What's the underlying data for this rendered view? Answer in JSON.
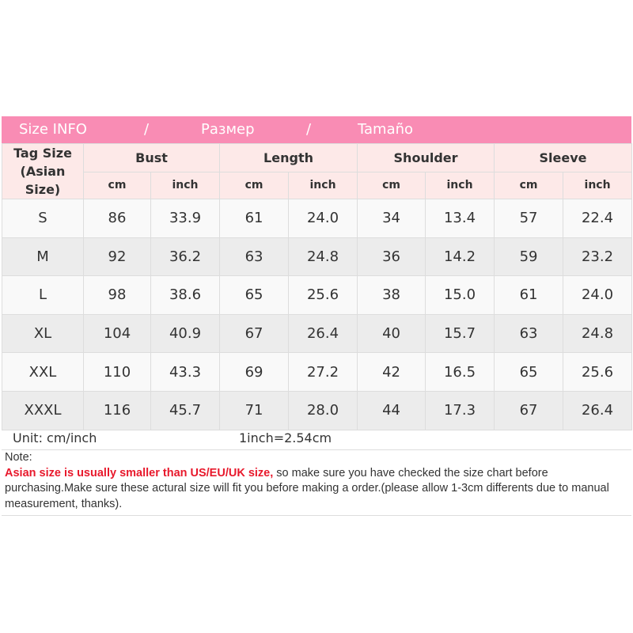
{
  "banner": {
    "title": "Size INFO",
    "sep1": "/",
    "ru": "Размер",
    "sep2": "/",
    "es": "Tamaño"
  },
  "header": {
    "tag": "Tag Size",
    "tag2": "(Asian Size)",
    "groups": [
      "Bust",
      "Length",
      "Shoulder",
      "Sleeve"
    ],
    "cm": "cm",
    "inch": "inch"
  },
  "rows": [
    [
      "S",
      "86",
      "33.9",
      "61",
      "24.0",
      "34",
      "13.4",
      "57",
      "22.4"
    ],
    [
      "M",
      "92",
      "36.2",
      "63",
      "24.8",
      "36",
      "14.2",
      "59",
      "23.2"
    ],
    [
      "L",
      "98",
      "38.6",
      "65",
      "25.6",
      "38",
      "15.0",
      "61",
      "24.0"
    ],
    [
      "XL",
      "104",
      "40.9",
      "67",
      "26.4",
      "40",
      "15.7",
      "63",
      "24.8"
    ],
    [
      "XXL",
      "110",
      "43.3",
      "69",
      "27.2",
      "42",
      "16.5",
      "65",
      "25.6"
    ],
    [
      "XXXL",
      "116",
      "45.7",
      "71",
      "28.0",
      "44",
      "17.3",
      "67",
      "26.4"
    ]
  ],
  "unit": {
    "label": "Unit: cm/inch",
    "conversion": "1inch=2.54cm"
  },
  "note": {
    "label": "Note:",
    "warning": "Asian size is usually smaller than US/EU/UK size,",
    "text": " so make sure you have checked the size chart before purchasing.Make sure these actural size will fit you before making a order.(please allow 1-3cm differents due to manual measurement, thanks)."
  },
  "colors": {
    "banner": "#f98cb4",
    "header_bg": "#fde9e8",
    "warning": "#e8192c"
  }
}
